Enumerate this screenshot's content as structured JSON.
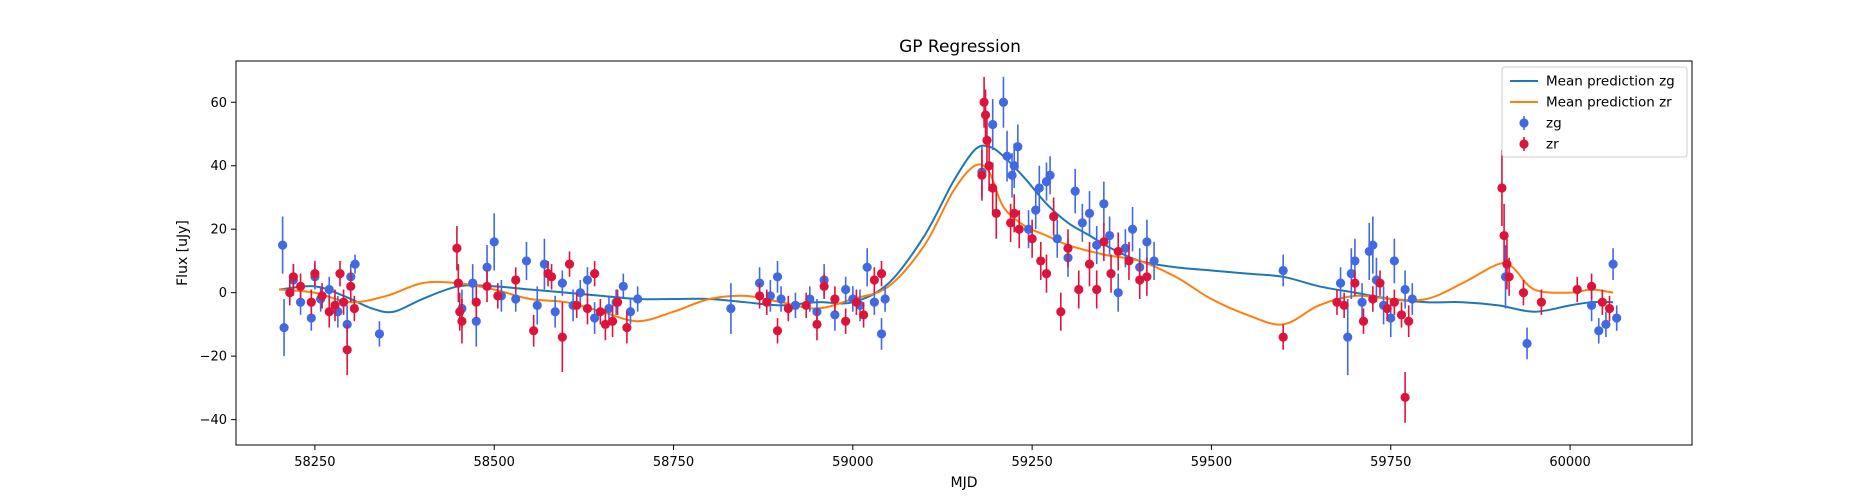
{
  "chart_data": {
    "type": "scatter",
    "title": "GP Regression",
    "xlabel": "MJD",
    "ylabel": "Flux [uJy]",
    "xlim": [
      58140,
      60170
    ],
    "ylim": [
      -48,
      73
    ],
    "xticks": [
      58250,
      58500,
      58750,
      59000,
      59250,
      59500,
      59750,
      60000
    ],
    "yticks": [
      -40,
      -20,
      0,
      20,
      40,
      60
    ],
    "legend_position": "top-right",
    "colors": {
      "zg_line": "#1f77b4",
      "zr_line": "#ff7f0e",
      "zg_points": "#4169e1",
      "zr_points": "#dc143c"
    },
    "series": [
      {
        "name": "Mean prediction zg",
        "kind": "line",
        "x": [
          58200,
          58250,
          58290,
          58330,
          58360,
          58400,
          58450,
          58500,
          58550,
          58600,
          58650,
          58700,
          58750,
          58800,
          58850,
          58900,
          58950,
          59000,
          59050,
          59100,
          59140,
          59170,
          59190,
          59210,
          59240,
          59270,
          59300,
          59330,
          59360,
          59400,
          59450,
          59500,
          59550,
          59600,
          59650,
          59700,
          59750,
          59800,
          59850,
          59900,
          59950,
          60000,
          60030,
          60060
        ],
        "y": [
          1,
          2,
          -1,
          -5,
          -6,
          -2,
          2,
          2,
          1,
          0,
          -1,
          -2,
          -2,
          -2,
          -3,
          -4,
          -3,
          -3,
          3,
          18,
          35,
          45,
          46,
          43,
          36,
          28,
          22,
          18,
          14,
          10,
          8,
          7,
          6,
          5,
          2,
          0,
          -2,
          -3,
          -3,
          -4,
          -6,
          -4,
          -3,
          -3
        ]
      },
      {
        "name": "Mean prediction zr",
        "kind": "line",
        "x": [
          58200,
          58250,
          58300,
          58350,
          58400,
          58450,
          58500,
          58550,
          58600,
          58650,
          58700,
          58750,
          58800,
          58850,
          58900,
          58950,
          59000,
          59050,
          59100,
          59140,
          59170,
          59190,
          59210,
          59240,
          59270,
          59300,
          59350,
          59400,
          59450,
          59500,
          59550,
          59600,
          59650,
          59700,
          59750,
          59800,
          59850,
          59900,
          59920,
          59950,
          60000,
          60030,
          60060
        ],
        "y": [
          1,
          0,
          -3,
          -1,
          3,
          3,
          1,
          -2,
          -3,
          -6,
          -9,
          -6,
          -2,
          -1,
          -3,
          -5,
          -2,
          2,
          15,
          32,
          40,
          38,
          27,
          21,
          18,
          15,
          12,
          10,
          5,
          -2,
          -7,
          -10,
          -4,
          -1,
          -2,
          -2,
          3,
          9,
          8,
          1,
          0,
          1,
          0
        ]
      },
      {
        "name": "zg",
        "kind": "errorbar",
        "points": [
          [
            58205,
            15,
            9
          ],
          [
            58207,
            -11,
            9
          ],
          [
            58220,
            4,
            5
          ],
          [
            58230,
            -3,
            4
          ],
          [
            58245,
            -8,
            4
          ],
          [
            58250,
            5,
            4
          ],
          [
            58258,
            -2,
            4
          ],
          [
            58270,
            1,
            4
          ],
          [
            58282,
            -6,
            5
          ],
          [
            58295,
            -10,
            6
          ],
          [
            58300,
            5,
            4
          ],
          [
            58306,
            9,
            3
          ],
          [
            58340,
            -13,
            4
          ],
          [
            58455,
            -5,
            6
          ],
          [
            58470,
            3,
            6
          ],
          [
            58475,
            -9,
            8
          ],
          [
            58490,
            8,
            7
          ],
          [
            58500,
            16,
            9
          ],
          [
            58510,
            -1,
            5
          ],
          [
            58530,
            -2,
            4
          ],
          [
            58545,
            10,
            6
          ],
          [
            58560,
            -4,
            6
          ],
          [
            58570,
            9,
            8
          ],
          [
            58585,
            -6,
            5
          ],
          [
            58595,
            3,
            4
          ],
          [
            58610,
            -4,
            5
          ],
          [
            58620,
            0,
            4
          ],
          [
            58630,
            4,
            4
          ],
          [
            58640,
            -8,
            5
          ],
          [
            58660,
            -5,
            4
          ],
          [
            58670,
            -3,
            4
          ],
          [
            58680,
            2,
            4
          ],
          [
            58690,
            -6,
            4
          ],
          [
            58700,
            -2,
            4
          ],
          [
            58830,
            -5,
            8
          ],
          [
            58870,
            3,
            5
          ],
          [
            58885,
            -1,
            5
          ],
          [
            58895,
            5,
            5
          ],
          [
            58900,
            -2,
            4
          ],
          [
            58920,
            -4,
            4
          ],
          [
            58940,
            -2,
            4
          ],
          [
            58950,
            -6,
            4
          ],
          [
            58960,
            4,
            5
          ],
          [
            58975,
            -7,
            5
          ],
          [
            58990,
            1,
            4
          ],
          [
            59000,
            -2,
            4
          ],
          [
            59010,
            -4,
            5
          ],
          [
            59020,
            8,
            6
          ],
          [
            59030,
            -3,
            4
          ],
          [
            59040,
            -13,
            5
          ],
          [
            59045,
            -2,
            4
          ],
          [
            59180,
            38,
            8
          ],
          [
            59195,
            53,
            8
          ],
          [
            59210,
            60,
            8
          ],
          [
            59215,
            43,
            8
          ],
          [
            59222,
            37,
            7
          ],
          [
            59225,
            40,
            7
          ],
          [
            59230,
            46,
            7
          ],
          [
            59245,
            20,
            6
          ],
          [
            59255,
            26,
            6
          ],
          [
            59260,
            33,
            7
          ],
          [
            59270,
            35,
            6
          ],
          [
            59275,
            37,
            6
          ],
          [
            59285,
            17,
            6
          ],
          [
            59300,
            11,
            6
          ],
          [
            59310,
            32,
            7
          ],
          [
            59320,
            22,
            6
          ],
          [
            59330,
            25,
            7
          ],
          [
            59340,
            15,
            6
          ],
          [
            59350,
            28,
            7
          ],
          [
            59358,
            18,
            6
          ],
          [
            59370,
            0,
            6
          ],
          [
            59380,
            14,
            6
          ],
          [
            59390,
            20,
            7
          ],
          [
            59400,
            8,
            6
          ],
          [
            59410,
            16,
            7
          ],
          [
            59420,
            10,
            6
          ],
          [
            59600,
            7,
            5
          ],
          [
            59680,
            3,
            5
          ],
          [
            59690,
            -14,
            12
          ],
          [
            59695,
            6,
            8
          ],
          [
            59700,
            10,
            7
          ],
          [
            59710,
            -3,
            6
          ],
          [
            59720,
            13,
            9
          ],
          [
            59725,
            15,
            9
          ],
          [
            59730,
            4,
            7
          ],
          [
            59740,
            -4,
            6
          ],
          [
            59750,
            -8,
            6
          ],
          [
            59755,
            10,
            7
          ],
          [
            59770,
            1,
            6
          ],
          [
            59780,
            -2,
            5
          ],
          [
            59910,
            5,
            10
          ],
          [
            59940,
            -16,
            5
          ],
          [
            60030,
            -4,
            5
          ],
          [
            60040,
            -12,
            4
          ],
          [
            60050,
            -10,
            4
          ],
          [
            60060,
            9,
            5
          ],
          [
            60065,
            -8,
            4
          ]
        ]
      },
      {
        "name": "zr",
        "kind": "errorbar",
        "points": [
          [
            58215,
            0,
            4
          ],
          [
            58220,
            5,
            4
          ],
          [
            58230,
            2,
            4
          ],
          [
            58245,
            -3,
            4
          ],
          [
            58250,
            6,
            4
          ],
          [
            58260,
            -1,
            4
          ],
          [
            58270,
            -6,
            5
          ],
          [
            58278,
            -4,
            5
          ],
          [
            58285,
            6,
            4
          ],
          [
            58290,
            -3,
            4
          ],
          [
            58295,
            -18,
            8
          ],
          [
            58300,
            2,
            5
          ],
          [
            58305,
            -5,
            4
          ],
          [
            58448,
            14,
            7
          ],
          [
            58450,
            3,
            6
          ],
          [
            58452,
            -6,
            6
          ],
          [
            58455,
            -9,
            7
          ],
          [
            58475,
            -3,
            5
          ],
          [
            58490,
            2,
            5
          ],
          [
            58505,
            -1,
            4
          ],
          [
            58530,
            4,
            4
          ],
          [
            58555,
            -12,
            5
          ],
          [
            58575,
            6,
            4
          ],
          [
            58580,
            5,
            4
          ],
          [
            58595,
            -14,
            11
          ],
          [
            58605,
            9,
            4
          ],
          [
            58615,
            -4,
            4
          ],
          [
            58630,
            -5,
            5
          ],
          [
            58640,
            6,
            4
          ],
          [
            58648,
            -6,
            4
          ],
          [
            58655,
            -10,
            5
          ],
          [
            58665,
            -9,
            5
          ],
          [
            58672,
            -3,
            4
          ],
          [
            58685,
            -11,
            5
          ],
          [
            58870,
            -1,
            4
          ],
          [
            58880,
            -3,
            4
          ],
          [
            58895,
            -12,
            4
          ],
          [
            58910,
            -5,
            4
          ],
          [
            58935,
            -4,
            4
          ],
          [
            58950,
            -10,
            5
          ],
          [
            58960,
            2,
            4
          ],
          [
            58975,
            -2,
            4
          ],
          [
            58990,
            -9,
            4
          ],
          [
            59005,
            -3,
            4
          ],
          [
            59015,
            -7,
            4
          ],
          [
            59030,
            4,
            4
          ],
          [
            59040,
            6,
            4
          ],
          [
            59180,
            37,
            8
          ],
          [
            59183,
            60,
            8
          ],
          [
            59185,
            56,
            8
          ],
          [
            59187,
            48,
            8
          ],
          [
            59190,
            40,
            8
          ],
          [
            59195,
            33,
            8
          ],
          [
            59200,
            25,
            8
          ],
          [
            59220,
            22,
            6
          ],
          [
            59225,
            25,
            6
          ],
          [
            59232,
            20,
            6
          ],
          [
            59250,
            17,
            6
          ],
          [
            59262,
            10,
            6
          ],
          [
            59270,
            6,
            6
          ],
          [
            59280,
            24,
            6
          ],
          [
            59290,
            -6,
            6
          ],
          [
            59300,
            14,
            6
          ],
          [
            59315,
            1,
            6
          ],
          [
            59330,
            9,
            7
          ],
          [
            59340,
            1,
            6
          ],
          [
            59350,
            16,
            6
          ],
          [
            59360,
            6,
            6
          ],
          [
            59370,
            13,
            6
          ],
          [
            59385,
            10,
            6
          ],
          [
            59400,
            4,
            6
          ],
          [
            59410,
            5,
            6
          ],
          [
            59600,
            -14,
            4
          ],
          [
            59675,
            -3,
            4
          ],
          [
            59685,
            -4,
            4
          ],
          [
            59700,
            3,
            4
          ],
          [
            59712,
            -9,
            4
          ],
          [
            59725,
            -2,
            4
          ],
          [
            59735,
            3,
            4
          ],
          [
            59745,
            -5,
            4
          ],
          [
            59755,
            -3,
            4
          ],
          [
            59765,
            -7,
            4
          ],
          [
            59770,
            -33,
            8
          ],
          [
            59775,
            -9,
            5
          ],
          [
            59905,
            33,
            12
          ],
          [
            59908,
            18,
            10
          ],
          [
            59912,
            9,
            8
          ],
          [
            59915,
            5,
            6
          ],
          [
            59935,
            0,
            4
          ],
          [
            59960,
            -3,
            4
          ],
          [
            60010,
            1,
            4
          ],
          [
            60030,
            2,
            4
          ],
          [
            60045,
            -3,
            4
          ],
          [
            60055,
            -5,
            4
          ]
        ]
      }
    ],
    "legend": [
      "Mean prediction zg",
      "Mean prediction zr",
      "zg",
      "zr"
    ]
  }
}
